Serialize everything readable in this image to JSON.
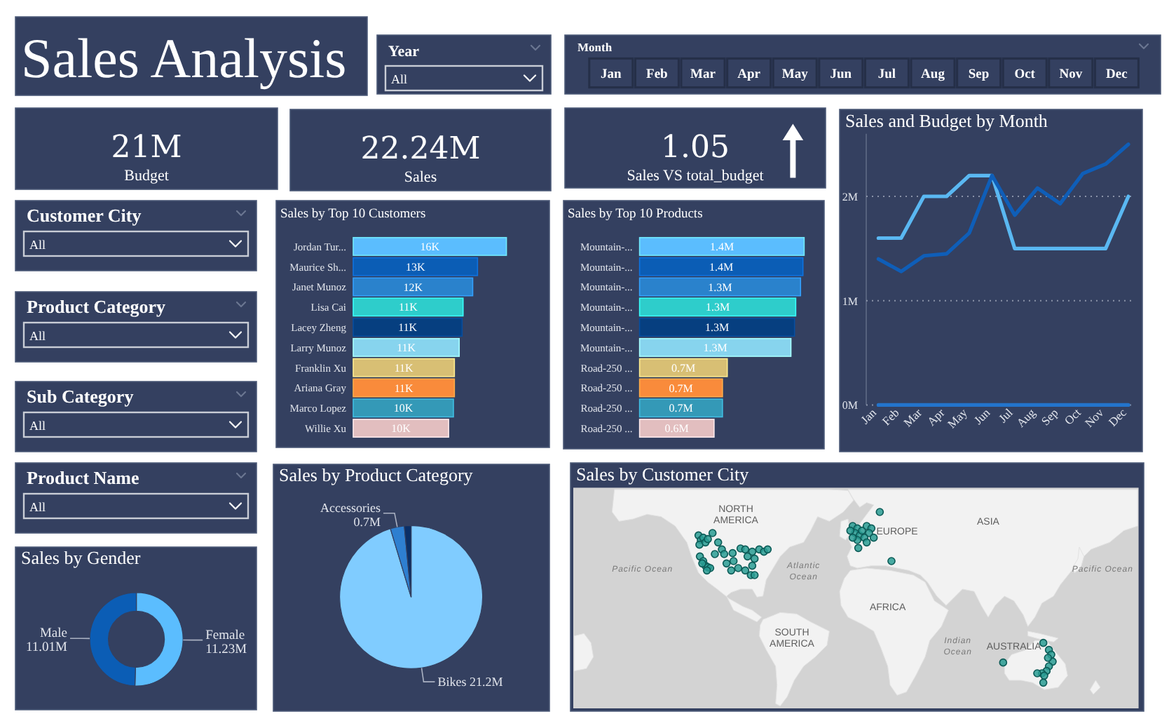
{
  "chart_data": [
    {
      "type": "other",
      "title": "Sales Analysis"
    },
    {
      "type": "other",
      "title": "Year",
      "annotations": [
        "All"
      ]
    },
    {
      "type": "other",
      "title": "Month",
      "annotations": [
        "Jan",
        "Feb",
        "Mar",
        "Apr",
        "May",
        "Jun",
        "Jul",
        "Aug",
        "Sep",
        "Oct",
        "Nov",
        "Dec"
      ]
    },
    {
      "type": "other",
      "title": "Budget",
      "annotations": [
        "21M"
      ]
    },
    {
      "type": "other",
      "title": "Sales",
      "annotations": [
        "22.24M"
      ]
    },
    {
      "type": "other",
      "title": "Sales VS total_budget",
      "annotations": [
        "1.05"
      ]
    },
    {
      "type": "line",
      "title": "Sales and Budget by Month",
      "categories": [
        "Jan",
        "Feb",
        "Mar",
        "Apr",
        "May",
        "Jun",
        "Jul",
        "Aug",
        "Sep",
        "Oct",
        "Nov",
        "Dec"
      ],
      "series": [
        {
          "color": "#5ab8f2",
          "values": [
            1.6,
            1.6,
            2.0,
            2.0,
            2.2,
            2.2,
            1.5,
            1.5,
            1.5,
            1.5,
            1.5,
            2.0
          ]
        },
        {
          "color": "#0f5eb8",
          "values": [
            1.4,
            1.28,
            1.43,
            1.45,
            1.65,
            2.2,
            1.82,
            2.08,
            1.93,
            2.22,
            2.31,
            2.5
          ]
        },
        {
          "color": "#2374cc",
          "values": [
            0,
            0,
            0,
            0,
            0,
            0,
            0,
            0,
            0,
            0,
            0,
            0
          ]
        }
      ],
      "ylim": [
        0,
        2.6
      ],
      "yticks": [
        {
          "value": 0,
          "label": "0M"
        },
        {
          "value": 1,
          "label": "1M"
        },
        {
          "value": 2,
          "label": "2M"
        }
      ],
      "grid": "y"
    },
    {
      "type": "other",
      "title": "Customer City",
      "annotations": [
        "All"
      ]
    },
    {
      "type": "bar",
      "orientation": "horizontal",
      "title": "Sales by Top 10 Customers",
      "categories": [
        "Jordan Tur...",
        "Maurice Sh...",
        "Janet Munoz",
        "Lisa Cai",
        "Lacey Zheng",
        "Larry Munoz",
        "Franklin Xu",
        "Ariana Gray",
        "Marco Lopez",
        "Willie Xu"
      ],
      "values": [
        15.9,
        12.9,
        12.4,
        11.4,
        11.3,
        11.0,
        10.5,
        10.5,
        10.4,
        9.9
      ],
      "colors": [
        "#5bbdfe",
        "#0b5db5",
        "#2a82cc",
        "#2ecdcb",
        "#063f80",
        "#87d4ee",
        "#d8bf74",
        "#f98b3b",
        "#3499b7",
        "#e2bebf"
      ],
      "value_labels": [
        "16K",
        "13K",
        "12K",
        "11K",
        "11K",
        "11K",
        "11K",
        "11K",
        "10K",
        "10K"
      ]
    },
    {
      "type": "bar",
      "orientation": "horizontal",
      "title": "Sales by Top 10 Products",
      "categories": [
        "Mountain-...",
        "Mountain-...",
        "Mountain-...",
        "Mountain-...",
        "Mountain-...",
        "Mountain-...",
        "Road-250 ...",
        "Road-250 ...",
        "Road-250 ...",
        "Road-250 ..."
      ],
      "values": [
        1.37,
        1.36,
        1.34,
        1.3,
        1.29,
        1.26,
        0.73,
        0.69,
        0.69,
        0.62
      ],
      "colors": [
        "#5bbdfe",
        "#0b5db5",
        "#2a82cc",
        "#2ecdcb",
        "#063f80",
        "#87d4ee",
        "#d8bf74",
        "#f98b3b",
        "#3499b7",
        "#e2bebf"
      ],
      "value_labels": [
        "1.4M",
        "1.4M",
        "1.3M",
        "1.3M",
        "1.3M",
        "1.3M",
        "0.7M",
        "0.7M",
        "0.7M",
        "0.6M"
      ]
    },
    {
      "type": "other",
      "title": "Product Category",
      "annotations": [
        "All"
      ]
    },
    {
      "type": "other",
      "title": "Sub Category",
      "annotations": [
        "All"
      ]
    },
    {
      "type": "other",
      "title": "Product Name",
      "annotations": [
        "All"
      ]
    },
    {
      "type": "pie",
      "title": "Sales by Product Category",
      "categories": [
        "Bikes",
        "Accessories",
        null
      ],
      "values": [
        21.2,
        0.7,
        0.34
      ],
      "colors": [
        "#80ccff",
        "#2e7fd0",
        "#0b2f66"
      ],
      "value_labels": [
        "21.2M",
        "0.7M",
        null
      ]
    },
    {
      "type": "other",
      "title": "Sales by Customer City",
      "annotations": [
        "NORTH AMERICA",
        "EUROPE",
        "ASIA",
        "Pacific Ocean",
        "Atlantic Ocean",
        "AFRICA",
        "SOUTH AMERICA",
        "Indian Ocean",
        "AUSTRALIA",
        "Pacific Ocean"
      ]
    },
    {
      "type": "donut",
      "title": "Sales by Gender",
      "categories": [
        "Female",
        "Male"
      ],
      "values": [
        11.23,
        11.01
      ],
      "colors": [
        "#5bbdfe",
        "#0b5db5"
      ],
      "value_labels": [
        "11.23M",
        "11.01M"
      ]
    }
  ]
}
